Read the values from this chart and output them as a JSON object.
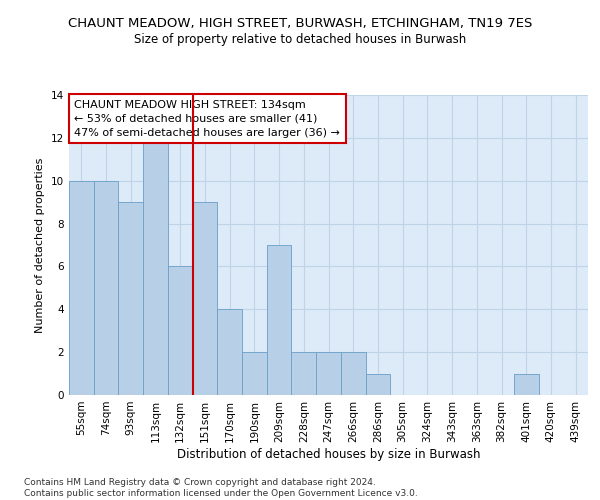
{
  "title": "CHAUNT MEADOW, HIGH STREET, BURWASH, ETCHINGHAM, TN19 7ES",
  "subtitle": "Size of property relative to detached houses in Burwash",
  "xlabel": "Distribution of detached houses by size in Burwash",
  "ylabel": "Number of detached properties",
  "categories": [
    "55sqm",
    "74sqm",
    "93sqm",
    "113sqm",
    "132sqm",
    "151sqm",
    "170sqm",
    "190sqm",
    "209sqm",
    "228sqm",
    "247sqm",
    "266sqm",
    "286sqm",
    "305sqm",
    "324sqm",
    "343sqm",
    "363sqm",
    "382sqm",
    "401sqm",
    "420sqm",
    "439sqm"
  ],
  "values": [
    10,
    10,
    9,
    12,
    6,
    9,
    4,
    2,
    7,
    2,
    2,
    2,
    1,
    0,
    0,
    0,
    0,
    0,
    1,
    0,
    0
  ],
  "bar_color": "#b8cfe8",
  "bar_edge_color": "#6a9fc8",
  "highlight_index": 4,
  "highlight_line_color": "#cc0000",
  "annotation_text": "CHAUNT MEADOW HIGH STREET: 134sqm\n← 53% of detached houses are smaller (41)\n47% of semi-detached houses are larger (36) →",
  "annotation_box_color": "#ffffff",
  "annotation_box_edge_color": "#cc0000",
  "ylim": [
    0,
    14
  ],
  "yticks": [
    0,
    2,
    4,
    6,
    8,
    10,
    12,
    14
  ],
  "grid_color": "#c0d4e8",
  "background_color": "#ddeaf8",
  "footer_text": "Contains HM Land Registry data © Crown copyright and database right 2024.\nContains public sector information licensed under the Open Government Licence v3.0.",
  "title_fontsize": 9.5,
  "subtitle_fontsize": 8.5,
  "xlabel_fontsize": 8.5,
  "ylabel_fontsize": 8,
  "tick_fontsize": 7.5,
  "annotation_fontsize": 8,
  "footer_fontsize": 6.5
}
